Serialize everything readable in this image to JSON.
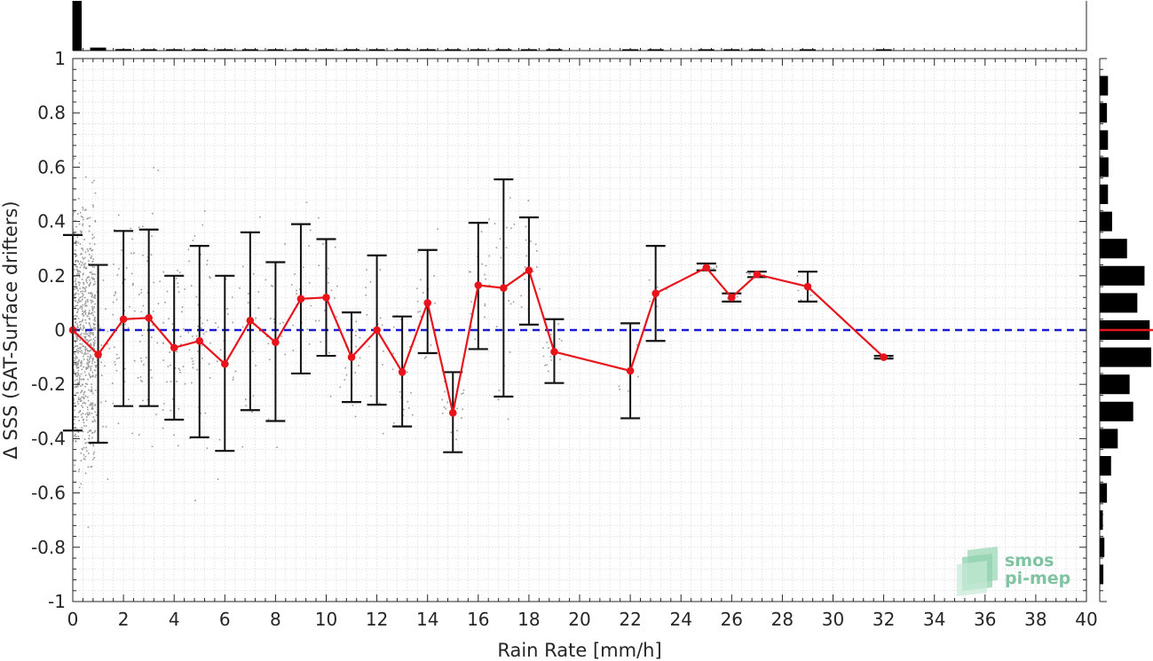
{
  "chart_data": {
    "type": "scatter",
    "xlabel": "Rain Rate [mm/h]",
    "ylabel": "Δ SSS (SAT-Surface drifters)",
    "xlim": [
      0,
      40
    ],
    "ylim": [
      -1,
      1
    ],
    "x_ticks": [
      0,
      2,
      4,
      6,
      8,
      10,
      12,
      14,
      16,
      18,
      20,
      22,
      24,
      26,
      28,
      30,
      32,
      34,
      36,
      38,
      40
    ],
    "y_ticks": [
      1,
      0.8,
      0.6,
      0.4,
      0.2,
      0,
      -0.2,
      -0.4,
      -0.6,
      -0.8,
      -1
    ],
    "grid": "on (minor, dotted)",
    "series": [
      {
        "kind": "binned-mean-line",
        "color": "#e8141b",
        "x": [
          0,
          1,
          2,
          3,
          4,
          5,
          6,
          7,
          8,
          9,
          10,
          11,
          12,
          13,
          14,
          15,
          16,
          17,
          18,
          19,
          22,
          23,
          25,
          26,
          27,
          29,
          32
        ],
        "y": [
          0.0,
          -0.09,
          0.04,
          0.045,
          -0.065,
          -0.04,
          -0.125,
          0.035,
          -0.045,
          0.115,
          0.12,
          -0.1,
          0.0,
          -0.155,
          0.1,
          -0.305,
          0.165,
          0.155,
          0.22,
          -0.08,
          -0.15,
          0.135,
          0.23,
          0.12,
          0.205,
          0.16,
          -0.1
        ],
        "err_low": [
          -0.37,
          -0.415,
          -0.28,
          -0.28,
          -0.33,
          -0.395,
          -0.445,
          -0.295,
          -0.335,
          -0.16,
          -0.095,
          -0.265,
          -0.275,
          -0.355,
          -0.085,
          -0.45,
          -0.07,
          -0.245,
          0.02,
          -0.195,
          -0.325,
          -0.04,
          0.22,
          0.105,
          0.195,
          0.105,
          -0.105
        ],
        "err_high": [
          0.35,
          0.24,
          0.365,
          0.37,
          0.2,
          0.31,
          0.2,
          0.36,
          0.25,
          0.39,
          0.335,
          0.065,
          0.275,
          0.05,
          0.295,
          -0.155,
          0.395,
          0.555,
          0.415,
          0.04,
          0.025,
          0.31,
          0.245,
          0.135,
          0.215,
          0.215,
          -0.095
        ]
      },
      {
        "kind": "reference-line",
        "y": 0,
        "color": "#1b1bd6",
        "style": "dashed"
      },
      {
        "kind": "raw-scatter",
        "color": "#9a9a9a"
      }
    ],
    "top_histogram": {
      "bins": [
        0,
        1,
        2,
        3,
        4,
        5,
        6,
        7,
        8,
        9,
        10,
        11,
        12,
        13,
        14,
        15,
        16,
        17,
        18,
        19,
        22,
        23,
        25,
        26,
        27,
        29,
        32
      ],
      "relative_counts": [
        1.0,
        0.06,
        0.03,
        0.02,
        0.015,
        0.012,
        0.01,
        0.01,
        0.008,
        0.008,
        0.008,
        0.006,
        0.006,
        0.005,
        0.005,
        0.005,
        0.004,
        0.004,
        0.004,
        0.004,
        0.004,
        0.003,
        0.003,
        0.003,
        0.003,
        0.003,
        0.002
      ]
    },
    "right_histogram": {
      "bin_centers": [
        0.9,
        0.8,
        0.7,
        0.6,
        0.5,
        0.4,
        0.3,
        0.2,
        0.1,
        0.0,
        -0.1,
        -0.2,
        -0.3,
        -0.4,
        -0.5,
        -0.6,
        -0.7,
        -0.8,
        -0.9
      ],
      "relative_counts": [
        0.16,
        0.14,
        0.16,
        0.17,
        0.16,
        0.24,
        0.53,
        0.87,
        0.73,
        0.97,
        1.0,
        0.58,
        0.65,
        0.35,
        0.22,
        0.14,
        0.06,
        0.09,
        0.07
      ],
      "mean_marker": 0,
      "mean_marker_color": "#e8141b"
    }
  },
  "logo": {
    "line1": "smos",
    "line2": "pi-mep"
  }
}
